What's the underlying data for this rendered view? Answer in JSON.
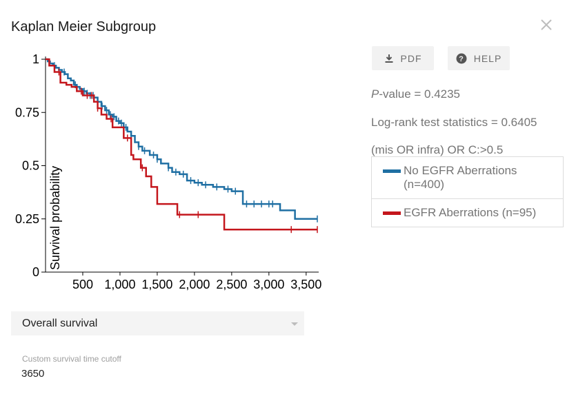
{
  "header": {
    "title": "Kaplan Meier Subgroup"
  },
  "toolbar": {
    "pdf_label": "PDF",
    "help_label": "HELP"
  },
  "stats": {
    "p_label": "P",
    "p_rest": "-value = 0.4235",
    "logrank": "Log-rank test statistics = 0.6405",
    "subgroup": "(mis OR infra) OR C:>0.5"
  },
  "legend": {
    "items": [
      {
        "label": "No EGFR Aberrations (n=400)",
        "color": "#1f6fa3"
      },
      {
        "label": "EGFR Aberrations (n=95)",
        "color": "#c4161c"
      }
    ]
  },
  "controls": {
    "survival_type": "Overall survival",
    "cutoff_label": "Custom survival time cutoff",
    "cutoff_value": "3650"
  },
  "chart_data": {
    "type": "line",
    "step": true,
    "title": "",
    "xlabel": "",
    "ylabel": "Survival probability",
    "xlim": [
      0,
      3650
    ],
    "ylim": [
      0,
      1
    ],
    "xticks": [
      500,
      1000,
      1500,
      2000,
      2500,
      3000,
      3500
    ],
    "xtick_labels": [
      "500",
      "1,000",
      "1,500",
      "2,000",
      "2,500",
      "3,000",
      "3,500"
    ],
    "yticks": [
      0,
      0.25,
      0.5,
      0.75,
      1
    ],
    "ytick_labels": [
      "0",
      "0.25",
      "0.5",
      "0.75",
      "1"
    ],
    "series": [
      {
        "name": "No EGFR Aberrations (n=400)",
        "color": "#1f6fa3",
        "x": [
          0,
          30,
          60,
          100,
          140,
          180,
          220,
          260,
          300,
          340,
          380,
          420,
          460,
          500,
          550,
          600,
          650,
          700,
          750,
          800,
          850,
          900,
          950,
          1000,
          1050,
          1100,
          1150,
          1200,
          1250,
          1300,
          1400,
          1500,
          1550,
          1650,
          1700,
          1800,
          1900,
          2000,
          2100,
          2250,
          2400,
          2500,
          2600,
          2650,
          3000,
          3150,
          3350,
          3650
        ],
        "y": [
          1,
          0.99,
          0.98,
          0.97,
          0.96,
          0.95,
          0.94,
          0.93,
          0.91,
          0.9,
          0.88,
          0.87,
          0.86,
          0.85,
          0.84,
          0.83,
          0.82,
          0.8,
          0.78,
          0.76,
          0.74,
          0.73,
          0.71,
          0.7,
          0.68,
          0.66,
          0.64,
          0.61,
          0.59,
          0.57,
          0.55,
          0.53,
          0.51,
          0.49,
          0.47,
          0.46,
          0.43,
          0.42,
          0.41,
          0.4,
          0.39,
          0.38,
          0.38,
          0.32,
          0.32,
          0.29,
          0.25,
          0.25
        ],
        "censored_x": [
          120,
          250,
          400,
          520,
          560,
          600,
          640,
          700,
          760,
          820,
          870,
          920,
          980,
          1020,
          1080,
          1150,
          1250,
          1330,
          1450,
          1500,
          1650,
          1750,
          1850,
          1950,
          2050,
          2150,
          2300,
          2450,
          2550,
          2700,
          2800,
          2900,
          3000,
          3050,
          3650
        ]
      },
      {
        "name": "EGFR Aberrations (n=95)",
        "color": "#c4161c",
        "x": [
          0,
          50,
          120,
          200,
          280,
          350,
          420,
          500,
          650,
          700,
          750,
          820,
          900,
          1050,
          1150,
          1180,
          1280,
          1350,
          1420,
          1500,
          1770,
          2400,
          3650
        ],
        "y": [
          1,
          0.97,
          0.94,
          0.89,
          0.88,
          0.87,
          0.85,
          0.83,
          0.8,
          0.77,
          0.74,
          0.72,
          0.68,
          0.63,
          0.55,
          0.53,
          0.49,
          0.45,
          0.4,
          0.32,
          0.27,
          0.2,
          0.2
        ],
        "censored_x": [
          180,
          480,
          560,
          620,
          700,
          880,
          1100,
          1300,
          1800,
          2050,
          3300,
          3650
        ]
      }
    ],
    "legend": "right",
    "grid": false
  }
}
